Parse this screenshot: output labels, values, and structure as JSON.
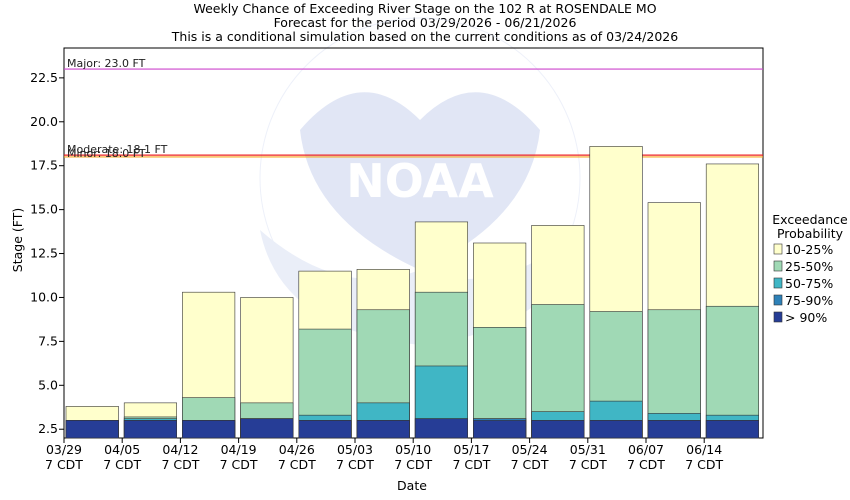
{
  "chart_data": {
    "type": "bar",
    "stacked": true,
    "title": "Weekly Chance of Exceeding River Stage on the 102 R at ROSENDALE MO",
    "subtitle": "Forecast for the period 03/29/2026 - 06/21/2026",
    "subtitle2": "This is a conditional simulation based on the current conditions as of 03/24/2026",
    "xlabel": "Date",
    "ylabel": "Stage (FT)",
    "ylim": [
      2.0,
      24.2
    ],
    "yticks": [
      "2.5",
      "5.0",
      "7.5",
      "10.0",
      "12.5",
      "15.0",
      "17.5",
      "20.0",
      "22.5"
    ],
    "categories": [
      "03/29",
      "04/05",
      "04/12",
      "04/19",
      "04/26",
      "05/03",
      "05/10",
      "05/17",
      "05/24",
      "05/31",
      "06/07",
      "06/14"
    ],
    "category_sublabel": "7 CDT",
    "grid": false,
    "legend_position": "right",
    "legend_title": "Exceedance",
    "legend_title2": "Probability",
    "series": [
      {
        "name": "> 90%",
        "color": "#263d96",
        "top": [
          3.0,
          3.0,
          3.0,
          3.1,
          3.0,
          3.0,
          3.1,
          3.0,
          3.0,
          3.0,
          3.0,
          3.0
        ]
      },
      {
        "name": "75-90%",
        "color": "#2e81b8",
        "top": [
          3.0,
          3.0,
          3.0,
          3.1,
          3.0,
          3.0,
          3.1,
          3.1,
          3.0,
          3.0,
          3.0,
          3.0
        ]
      },
      {
        "name": "50-75%",
        "color": "#40b6c5",
        "top": [
          3.0,
          3.1,
          3.0,
          3.1,
          3.3,
          4.0,
          6.1,
          3.1,
          3.5,
          4.1,
          3.4,
          3.3
        ]
      },
      {
        "name": "25-50%",
        "color": "#a0d9b5",
        "top": [
          3.0,
          3.2,
          4.3,
          4.0,
          8.2,
          9.3,
          10.3,
          8.3,
          9.6,
          9.2,
          9.3,
          9.5
        ]
      },
      {
        "name": "10-25%",
        "color": "#ffffcc",
        "top": [
          3.8,
          4.0,
          10.3,
          10.0,
          11.5,
          11.6,
          14.3,
          13.1,
          14.1,
          18.6,
          15.4,
          17.6
        ]
      }
    ],
    "thresholds": [
      {
        "label": "Major: 23.0 FT",
        "value": 23.0,
        "color": "#cc44cc"
      },
      {
        "label": "Moderate: 18.1 FT",
        "value": 18.1,
        "color": "#ee2222"
      },
      {
        "label": "Minor: 18.0 FT",
        "value": 18.0,
        "color": "#f5a623"
      }
    ],
    "colors": {
      "axis": "#000000",
      "background": "#ffffff",
      "watermark": "#c9d3ee"
    },
    "watermark": "NOAA"
  }
}
